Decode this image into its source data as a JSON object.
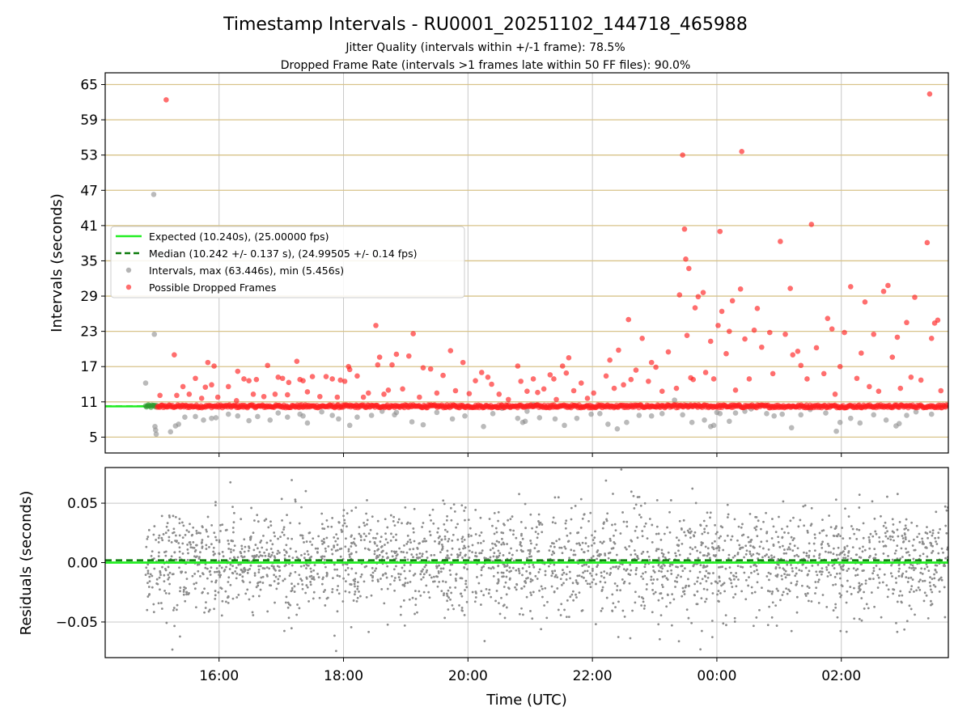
{
  "title": "Timestamp Intervals - RU0001_20251102_144718_465988",
  "subtitle_1": "Jitter Quality (intervals within +/-1 frame): 78.5%",
  "subtitle_2": "Dropped Frame Rate (intervals >1 frames late within 50 FF files): 90.0%",
  "colors": {
    "expected": "#22ee22",
    "median": "#0a7a0a",
    "intervals": "#8c8c8c",
    "dropped": "#ff2020",
    "hgrid": "#d8c38a",
    "vgrid": "#c8c8c8"
  },
  "chart_data": [
    {
      "type": "scatter",
      "name": "intervals",
      "ylabel": "Intervals (seconds)",
      "xlim_hours": [
        14.17,
        27.72
      ],
      "ylim": [
        2.3,
        67.0
      ],
      "yticks": [
        5,
        11,
        17,
        23,
        29,
        35,
        41,
        47,
        53,
        59,
        65
      ],
      "ytick_labels": [
        "5",
        "11",
        "17",
        "23",
        "29",
        "35",
        "41",
        "47",
        "53",
        "59",
        "65"
      ],
      "xticks_hours": [
        16,
        18,
        20,
        22,
        24,
        26
      ],
      "xtick_labels": [
        "16:00",
        "18:00",
        "20:00",
        "22:00",
        "00:00",
        "02:00"
      ],
      "expected_value": 10.24,
      "median_value": 10.242,
      "legend": [
        "Expected (10.240s), (25.00000 fps)",
        "Median (10.242 +/- 0.137 s), (24.99505 +/- 0.14 fps)",
        "Intervals, max (63.446s), min (5.456s)",
        "Possible Dropped Frames"
      ],
      "series": [
        {
          "name": "Intervals (gray)",
          "points": [
            [
              14.82,
              14.2
            ],
            [
              14.95,
              46.3
            ],
            [
              14.96,
              22.5
            ],
            [
              14.97,
              6.8
            ],
            [
              14.98,
              6.2
            ],
            [
              14.99,
              5.5
            ],
            [
              15.22,
              5.9
            ],
            [
              15.3,
              6.9
            ],
            [
              15.35,
              7.2
            ],
            [
              15.45,
              8.4
            ],
            [
              15.62,
              8.5
            ],
            [
              15.75,
              7.9
            ],
            [
              15.88,
              8.2
            ],
            [
              15.95,
              8.3
            ],
            [
              16.15,
              8.9
            ],
            [
              16.3,
              8.6
            ],
            [
              16.48,
              7.8
            ],
            [
              16.62,
              8.5
            ],
            [
              16.82,
              7.9
            ],
            [
              16.95,
              9.1
            ],
            [
              17.1,
              8.4
            ],
            [
              17.3,
              8.9
            ],
            [
              17.35,
              8.6
            ],
            [
              17.42,
              7.4
            ],
            [
              17.65,
              9.3
            ],
            [
              17.82,
              8.7
            ],
            [
              17.92,
              8.1
            ],
            [
              18.1,
              7.0
            ],
            [
              18.22,
              8.4
            ],
            [
              18.45,
              8.7
            ],
            [
              18.62,
              9.4
            ],
            [
              18.82,
              8.8
            ],
            [
              18.85,
              9.2
            ],
            [
              19.1,
              7.6
            ],
            [
              19.28,
              7.1
            ],
            [
              19.5,
              9.2
            ],
            [
              19.75,
              8.1
            ],
            [
              19.95,
              8.6
            ],
            [
              20.25,
              6.8
            ],
            [
              20.4,
              9.0
            ],
            [
              20.55,
              9.9
            ],
            [
              20.8,
              8.2
            ],
            [
              20.88,
              7.5
            ],
            [
              20.92,
              7.7
            ],
            [
              20.95,
              9.4
            ],
            [
              21.05,
              10.5
            ],
            [
              21.15,
              8.3
            ],
            [
              21.4,
              8.1
            ],
            [
              21.55,
              7.0
            ],
            [
              21.75,
              8.2
            ],
            [
              21.98,
              8.9
            ],
            [
              22.12,
              9.0
            ],
            [
              22.25,
              7.2
            ],
            [
              22.4,
              6.4
            ],
            [
              22.55,
              7.5
            ],
            [
              22.75,
              8.7
            ],
            [
              22.95,
              8.6
            ],
            [
              23.12,
              9.0
            ],
            [
              23.32,
              11.3
            ],
            [
              23.45,
              8.8
            ],
            [
              23.52,
              10.4
            ],
            [
              23.6,
              7.5
            ],
            [
              23.8,
              7.9
            ],
            [
              23.9,
              6.8
            ],
            [
              23.95,
              7.0
            ],
            [
              24.0,
              9.2
            ],
            [
              24.05,
              9.0
            ],
            [
              24.2,
              7.7
            ],
            [
              24.3,
              9.1
            ],
            [
              24.45,
              9.4
            ],
            [
              24.55,
              9.8
            ],
            [
              24.8,
              9.0
            ],
            [
              24.92,
              8.6
            ],
            [
              25.05,
              8.9
            ],
            [
              25.2,
              6.6
            ],
            [
              25.35,
              8.8
            ],
            [
              25.5,
              9.7
            ],
            [
              25.75,
              9.1
            ],
            [
              25.92,
              6.0
            ],
            [
              25.98,
              7.5
            ],
            [
              26.15,
              8.2
            ],
            [
              26.3,
              7.4
            ],
            [
              26.52,
              8.8
            ],
            [
              26.72,
              7.9
            ],
            [
              26.88,
              6.9
            ],
            [
              26.93,
              7.3
            ],
            [
              27.05,
              8.7
            ],
            [
              27.2,
              9.3
            ],
            [
              27.45,
              8.9
            ]
          ]
        },
        {
          "name": "Possible Dropped Frames (red)",
          "points": [
            [
              15.05,
              12.1
            ],
            [
              15.15,
              62.4
            ],
            [
              15.28,
              19.0
            ],
            [
              15.32,
              12.1
            ],
            [
              15.42,
              13.6
            ],
            [
              15.52,
              12.3
            ],
            [
              15.62,
              15.0
            ],
            [
              15.72,
              11.6
            ],
            [
              15.78,
              13.5
            ],
            [
              15.82,
              17.7
            ],
            [
              15.88,
              13.9
            ],
            [
              15.92,
              17.1
            ],
            [
              15.98,
              11.8
            ],
            [
              16.15,
              13.6
            ],
            [
              16.28,
              11.2
            ],
            [
              16.3,
              16.2
            ],
            [
              16.4,
              14.9
            ],
            [
              16.48,
              14.6
            ],
            [
              16.55,
              12.3
            ],
            [
              16.6,
              14.8
            ],
            [
              16.72,
              11.9
            ],
            [
              16.78,
              17.2
            ],
            [
              16.9,
              12.3
            ],
            [
              16.95,
              15.2
            ],
            [
              17.02,
              15.0
            ],
            [
              17.1,
              12.2
            ],
            [
              17.12,
              14.3
            ],
            [
              17.25,
              17.9
            ],
            [
              17.3,
              14.8
            ],
            [
              17.35,
              14.6
            ],
            [
              17.42,
              12.7
            ],
            [
              17.5,
              15.3
            ],
            [
              17.62,
              11.9
            ],
            [
              17.72,
              15.3
            ],
            [
              17.82,
              14.9
            ],
            [
              17.9,
              11.8
            ],
            [
              17.95,
              14.7
            ],
            [
              18.02,
              14.5
            ],
            [
              18.08,
              17.0
            ],
            [
              18.1,
              16.5
            ],
            [
              18.22,
              15.4
            ],
            [
              18.32,
              11.8
            ],
            [
              18.4,
              12.5
            ],
            [
              18.52,
              24.0
            ],
            [
              18.55,
              17.3
            ],
            [
              18.58,
              18.6
            ],
            [
              18.65,
              12.3
            ],
            [
              18.72,
              13.0
            ],
            [
              18.78,
              17.3
            ],
            [
              18.85,
              19.1
            ],
            [
              18.95,
              13.2
            ],
            [
              19.05,
              18.8
            ],
            [
              19.12,
              22.6
            ],
            [
              19.22,
              11.8
            ],
            [
              19.28,
              16.8
            ],
            [
              19.4,
              16.6
            ],
            [
              19.5,
              12.5
            ],
            [
              19.6,
              15.5
            ],
            [
              19.72,
              19.7
            ],
            [
              19.8,
              12.9
            ],
            [
              19.92,
              17.7
            ],
            [
              20.02,
              12.4
            ],
            [
              20.12,
              14.6
            ],
            [
              20.22,
              16.0
            ],
            [
              20.32,
              15.2
            ],
            [
              20.38,
              14.0
            ],
            [
              20.5,
              12.3
            ],
            [
              20.65,
              11.4
            ],
            [
              20.8,
              17.1
            ],
            [
              20.85,
              14.5
            ],
            [
              20.95,
              12.8
            ],
            [
              21.05,
              14.9
            ],
            [
              21.12,
              12.6
            ],
            [
              21.22,
              13.2
            ],
            [
              21.32,
              15.6
            ],
            [
              21.38,
              14.9
            ],
            [
              21.42,
              11.4
            ],
            [
              21.52,
              17.1
            ],
            [
              21.58,
              15.9
            ],
            [
              21.62,
              18.5
            ],
            [
              21.7,
              12.9
            ],
            [
              21.82,
              14.2
            ],
            [
              21.92,
              11.6
            ],
            [
              22.02,
              12.5
            ],
            [
              22.22,
              15.4
            ],
            [
              22.28,
              18.1
            ],
            [
              22.35,
              13.3
            ],
            [
              22.42,
              19.8
            ],
            [
              22.5,
              13.9
            ],
            [
              22.58,
              25.0
            ],
            [
              22.62,
              14.8
            ],
            [
              22.7,
              16.4
            ],
            [
              22.8,
              21.8
            ],
            [
              22.9,
              14.5
            ],
            [
              22.95,
              17.7
            ],
            [
              23.02,
              16.9
            ],
            [
              23.12,
              12.8
            ],
            [
              23.22,
              19.5
            ],
            [
              23.35,
              13.3
            ],
            [
              23.4,
              29.2
            ],
            [
              23.45,
              53.0
            ],
            [
              23.48,
              40.4
            ],
            [
              23.5,
              35.3
            ],
            [
              23.52,
              22.3
            ],
            [
              23.55,
              33.7
            ],
            [
              23.58,
              15.1
            ],
            [
              23.62,
              14.8
            ],
            [
              23.65,
              27.0
            ],
            [
              23.7,
              28.9
            ],
            [
              23.78,
              29.6
            ],
            [
              23.82,
              16.0
            ],
            [
              23.9,
              21.3
            ],
            [
              23.95,
              14.9
            ],
            [
              24.02,
              24.0
            ],
            [
              24.05,
              40.0
            ],
            [
              24.08,
              26.4
            ],
            [
              24.15,
              19.2
            ],
            [
              24.2,
              23.0
            ],
            [
              24.25,
              28.2
            ],
            [
              24.3,
              13.0
            ],
            [
              24.38,
              30.2
            ],
            [
              24.4,
              53.6
            ],
            [
              24.45,
              21.7
            ],
            [
              24.52,
              14.9
            ],
            [
              24.6,
              23.2
            ],
            [
              24.65,
              26.9
            ],
            [
              24.72,
              20.3
            ],
            [
              24.85,
              22.8
            ],
            [
              24.9,
              15.8
            ],
            [
              25.02,
              38.3
            ],
            [
              25.1,
              22.5
            ],
            [
              25.18,
              30.3
            ],
            [
              25.22,
              19.0
            ],
            [
              25.3,
              19.6
            ],
            [
              25.35,
              17.2
            ],
            [
              25.45,
              14.9
            ],
            [
              25.52,
              41.2
            ],
            [
              25.6,
              20.2
            ],
            [
              25.72,
              15.8
            ],
            [
              25.78,
              25.2
            ],
            [
              25.85,
              23.4
            ],
            [
              25.9,
              12.3
            ],
            [
              25.98,
              17.0
            ],
            [
              26.05,
              22.8
            ],
            [
              26.15,
              30.6
            ],
            [
              26.25,
              15.0
            ],
            [
              26.32,
              19.3
            ],
            [
              26.38,
              28.0
            ],
            [
              26.45,
              13.6
            ],
            [
              26.52,
              22.5
            ],
            [
              26.6,
              12.8
            ],
            [
              26.68,
              29.8
            ],
            [
              26.75,
              30.8
            ],
            [
              26.82,
              18.6
            ],
            [
              26.9,
              22.0
            ],
            [
              26.95,
              13.3
            ],
            [
              27.05,
              24.5
            ],
            [
              27.12,
              15.2
            ],
            [
              27.18,
              28.8
            ],
            [
              27.28,
              14.7
            ],
            [
              27.38,
              38.1
            ],
            [
              27.42,
              63.4
            ],
            [
              27.45,
              21.8
            ],
            [
              27.5,
              24.4
            ],
            [
              27.55,
              24.9
            ],
            [
              27.6,
              12.9
            ]
          ]
        }
      ]
    },
    {
      "type": "scatter",
      "name": "residuals",
      "ylabel": "Residuals (seconds)",
      "xlabel": "Time (UTC)",
      "ylim": [
        -0.08,
        0.08
      ],
      "yticks": [
        -0.05,
        0.0,
        0.05
      ],
      "ytick_labels": [
        "−0.05",
        "0.00",
        "0.05"
      ],
      "expected_value": 0.0,
      "median_value": 0.002,
      "x_range_hours": [
        14.82,
        27.72
      ],
      "point_count": 2600,
      "spread_std": 0.022
    }
  ]
}
